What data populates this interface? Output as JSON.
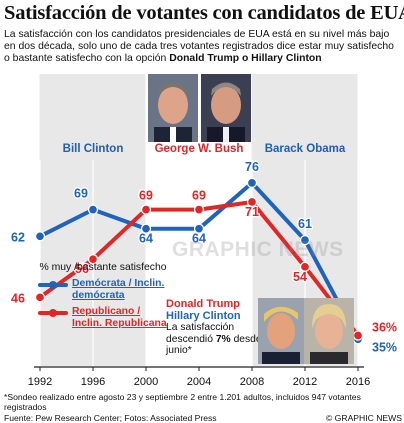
{
  "title": "Satisfacción de votantes con candidatos de EUA",
  "intro": {
    "text": "La satisfacción con los candidatos presidenciales de EUA está en su nivel más bajo en dos década, solo uno de cada tres votantes registrados dice estar muy satisfecho o bastante satisfecho con la opción ",
    "highlight": "Donald Trump o Hillary Clinton"
  },
  "eras": [
    {
      "label": "Bill Clinton",
      "color": "#1f5fb0",
      "years": [
        1992,
        1996
      ]
    },
    {
      "label": "George W. Bush",
      "color": "#d62a2a",
      "years": [
        2000,
        2004
      ]
    },
    {
      "label": "Barack Obama",
      "color": "#1f5fb0",
      "years": [
        2008,
        2012
      ]
    }
  ],
  "colors": {
    "democrat": "#1f63bd",
    "republican": "#e02626",
    "shade": "#e8e8e8",
    "axis": "#222222"
  },
  "chart_data": {
    "type": "line",
    "x": [
      1992,
      1996,
      2000,
      2004,
      2008,
      2012,
      2016
    ],
    "series": [
      {
        "name": "Demócrata / Inclin. demócrata",
        "values": [
          62,
          69,
          64,
          64,
          76,
          61,
          35
        ],
        "labels": [
          "62",
          "69",
          "64",
          "64",
          "76",
          "61",
          "35%"
        ]
      },
      {
        "name": "Republicano / Inclin. Republicana",
        "values": [
          46,
          56,
          69,
          69,
          71,
          54,
          36
        ],
        "labels": [
          "46",
          "56",
          "69",
          "69",
          "71",
          "54",
          "36%"
        ]
      }
    ],
    "xlim": [
      1992,
      2016
    ],
    "ylim": [
      28,
      82
    ],
    "ylabel": "% muy /bastante satisfecho",
    "grid": false
  },
  "legend": {
    "heading": "% muy /bastante satisfecho",
    "democrat": "Demócrata / Inclin. demócrata",
    "republican": "Republicano / Inclin. Republicana"
  },
  "candidates": {
    "trump": "Donald Trump",
    "clinton": "Hillary Clinton",
    "note_before": "La satisfacción descendió ",
    "note_value": "7%",
    "note_after": " desde junio*"
  },
  "footnote": {
    "note": "*Sondeo realizado entre agosto 23 y septiembre 2 entre 1.201 adultos, incluidos 947 votantes registrados",
    "source": "Fuente: Pew Research Center",
    "photos": "Fotos: Associated Press",
    "credit": "© GRAPHIC NEWS"
  },
  "watermark": "GRAPHIC NEWS"
}
